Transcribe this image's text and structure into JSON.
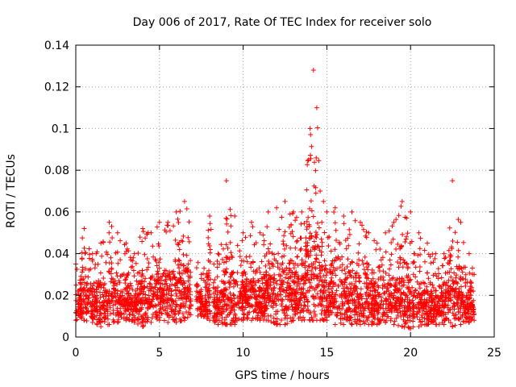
{
  "chart_data": {
    "type": "scatter",
    "title": "Day 006 of 2017, Rate Of TEC Index for receiver solo",
    "xlabel": "GPS time / hours",
    "ylabel": "ROTI / TECUs",
    "xlim": [
      0,
      25
    ],
    "ylim": [
      0,
      0.14
    ],
    "x_ticks": [
      "0",
      "5",
      "10",
      "15",
      "20",
      "25"
    ],
    "y_ticks": [
      "0",
      "0.02",
      "0.04",
      "0.06",
      "0.08",
      "0.1",
      "0.12",
      "0.14"
    ],
    "grid": true,
    "marker": "plus",
    "series": [
      {
        "name": "ROTI",
        "color": "#ff0000",
        "envelope_hours": [
          0.0,
          0.5,
          1.0,
          1.5,
          2.0,
          2.5,
          3.0,
          3.5,
          4.0,
          4.5,
          5.0,
          5.5,
          6.0,
          6.5,
          7.0,
          7.5,
          8.0,
          8.5,
          9.0,
          9.5,
          10.0,
          10.5,
          11.0,
          11.5,
          12.0,
          12.5,
          13.0,
          13.5,
          14.0,
          14.2,
          14.4,
          14.6,
          14.8,
          15.0,
          15.5,
          16.0,
          16.5,
          17.0,
          17.5,
          18.0,
          18.5,
          19.0,
          19.5,
          20.0,
          20.5,
          21.0,
          21.5,
          22.0,
          22.5,
          23.0,
          23.5,
          23.8
        ],
        "envelope_max_roti": [
          0.035,
          0.052,
          0.04,
          0.045,
          0.055,
          0.05,
          0.045,
          0.04,
          0.052,
          0.05,
          0.055,
          0.055,
          0.06,
          0.065,
          0.055,
          0.03,
          0.058,
          0.04,
          0.075,
          0.058,
          0.05,
          0.055,
          0.05,
          0.06,
          0.062,
          0.065,
          0.06,
          0.06,
          0.1,
          0.128,
          0.11,
          0.07,
          0.065,
          0.06,
          0.062,
          0.058,
          0.06,
          0.055,
          0.05,
          0.045,
          0.05,
          0.055,
          0.065,
          0.06,
          0.05,
          0.045,
          0.04,
          0.04,
          0.075,
          0.055,
          0.04,
          0.03
        ],
        "envelope_min_roti": [
          0.008,
          0.008,
          0.007,
          0.005,
          0.006,
          0.007,
          0.008,
          0.007,
          0.005,
          0.007,
          0.008,
          0.007,
          0.007,
          0.008,
          0.01,
          0.01,
          0.008,
          0.006,
          0.006,
          0.006,
          0.008,
          0.008,
          0.008,
          0.008,
          0.006,
          0.006,
          0.008,
          0.008,
          0.008,
          0.008,
          0.008,
          0.008,
          0.008,
          0.008,
          0.006,
          0.006,
          0.006,
          0.006,
          0.006,
          0.006,
          0.007,
          0.006,
          0.005,
          0.004,
          0.005,
          0.006,
          0.006,
          0.006,
          0.005,
          0.006,
          0.007,
          0.008
        ],
        "data_gaps_hours": [
          [
            6.9,
            7.2
          ],
          [
            8.1,
            8.2
          ]
        ]
      }
    ]
  }
}
